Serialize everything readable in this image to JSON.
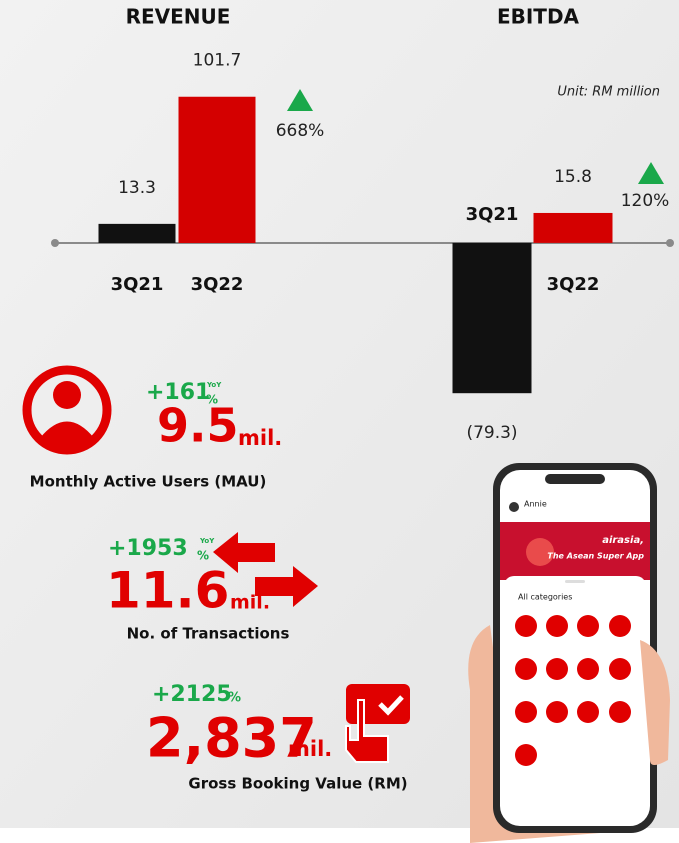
{
  "chart_data": [
    {
      "type": "bar",
      "title": "REVENUE",
      "categories": [
        "3Q21",
        "3Q22"
      ],
      "values": [
        13.3,
        101.7
      ],
      "colors": [
        "#111111",
        "#d40000"
      ],
      "change": "668%",
      "change_color": "#1aa84a",
      "ylim": [
        0,
        105
      ]
    },
    {
      "type": "bar",
      "title": "EBITDA",
      "categories": [
        "3Q21",
        "3Q22"
      ],
      "values": [
        -79.3,
        15.8
      ],
      "value_labels": [
        "(79.3)",
        "15.8"
      ],
      "colors": [
        "#111111",
        "#d40000"
      ],
      "change": "120%",
      "change_color": "#1aa84a",
      "unit": "Unit: RM million",
      "ylim": [
        -85,
        20
      ]
    }
  ],
  "stats": [
    {
      "change": "+161",
      "yoy": "YoY",
      "percent": "%",
      "value": "9.5",
      "unit": "mil.",
      "label": "Monthly Active Users (MAU)"
    },
    {
      "change": "+1953",
      "yoy": "YoY",
      "percent": "%",
      "value": "11.6",
      "unit": "mil.",
      "label": "No. of Transactions"
    },
    {
      "change": "+2125",
      "percent": "%",
      "value": "2,837",
      "unit": "mil.",
      "label": "Gross Booking Value (RM)"
    }
  ],
  "phone": {
    "user": "Annie",
    "banner": [
      "airasia,",
      "The Asean Super App"
    ],
    "section": "All categories"
  }
}
